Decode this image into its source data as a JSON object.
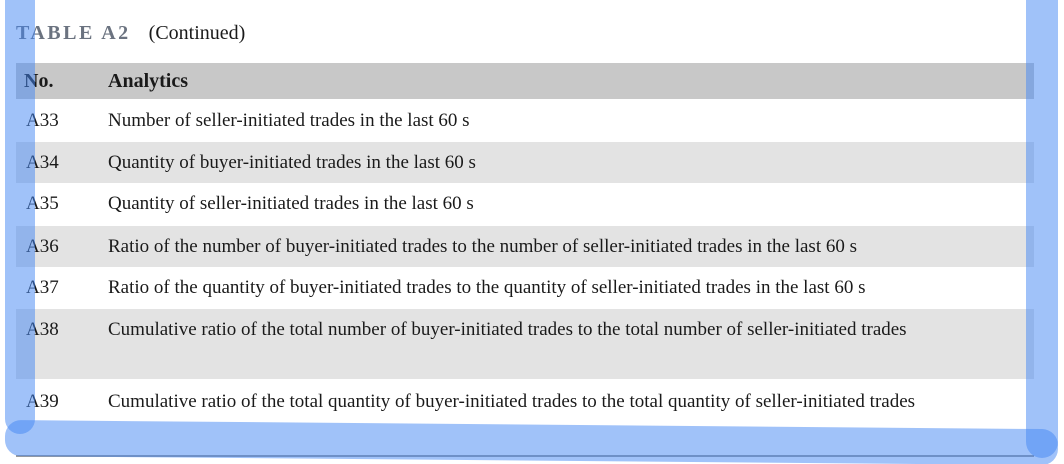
{
  "caption": {
    "label": "TABLE A2",
    "continued": "(Continued)"
  },
  "table": {
    "headers": [
      "No.",
      "Analytics"
    ],
    "rows": [
      {
        "no": "A33",
        "text": "Number of seller-initiated trades in the last 60 s"
      },
      {
        "no": "A34",
        "text": "Quantity of buyer-initiated trades in the last 60 s"
      },
      {
        "no": "A35",
        "text": "Quantity of seller-initiated trades in the last 60 s"
      },
      {
        "no": "A36",
        "text": "Ratio of the number of buyer-initiated trades to the number of seller-initiated trades in the last 60 s"
      },
      {
        "no": "A37",
        "text": "Ratio of the quantity of buyer-initiated trades to the quantity of seller-initiated trades in the last 60 s"
      },
      {
        "no": "A38",
        "text": "Cumulative ratio of the total number of buyer-initiated trades to the total number of seller-initiated trades"
      },
      {
        "no": "A39",
        "text": "Cumulative ratio of the total quantity of buyer-initiated trades to the total quantity of seller-initiated trades"
      }
    ]
  },
  "colors": {
    "header_bg": "#c8c8c8",
    "shaded_row_bg": "#e3e3e3",
    "caption_label": "#6b7380",
    "overlay": "#4285f4"
  }
}
